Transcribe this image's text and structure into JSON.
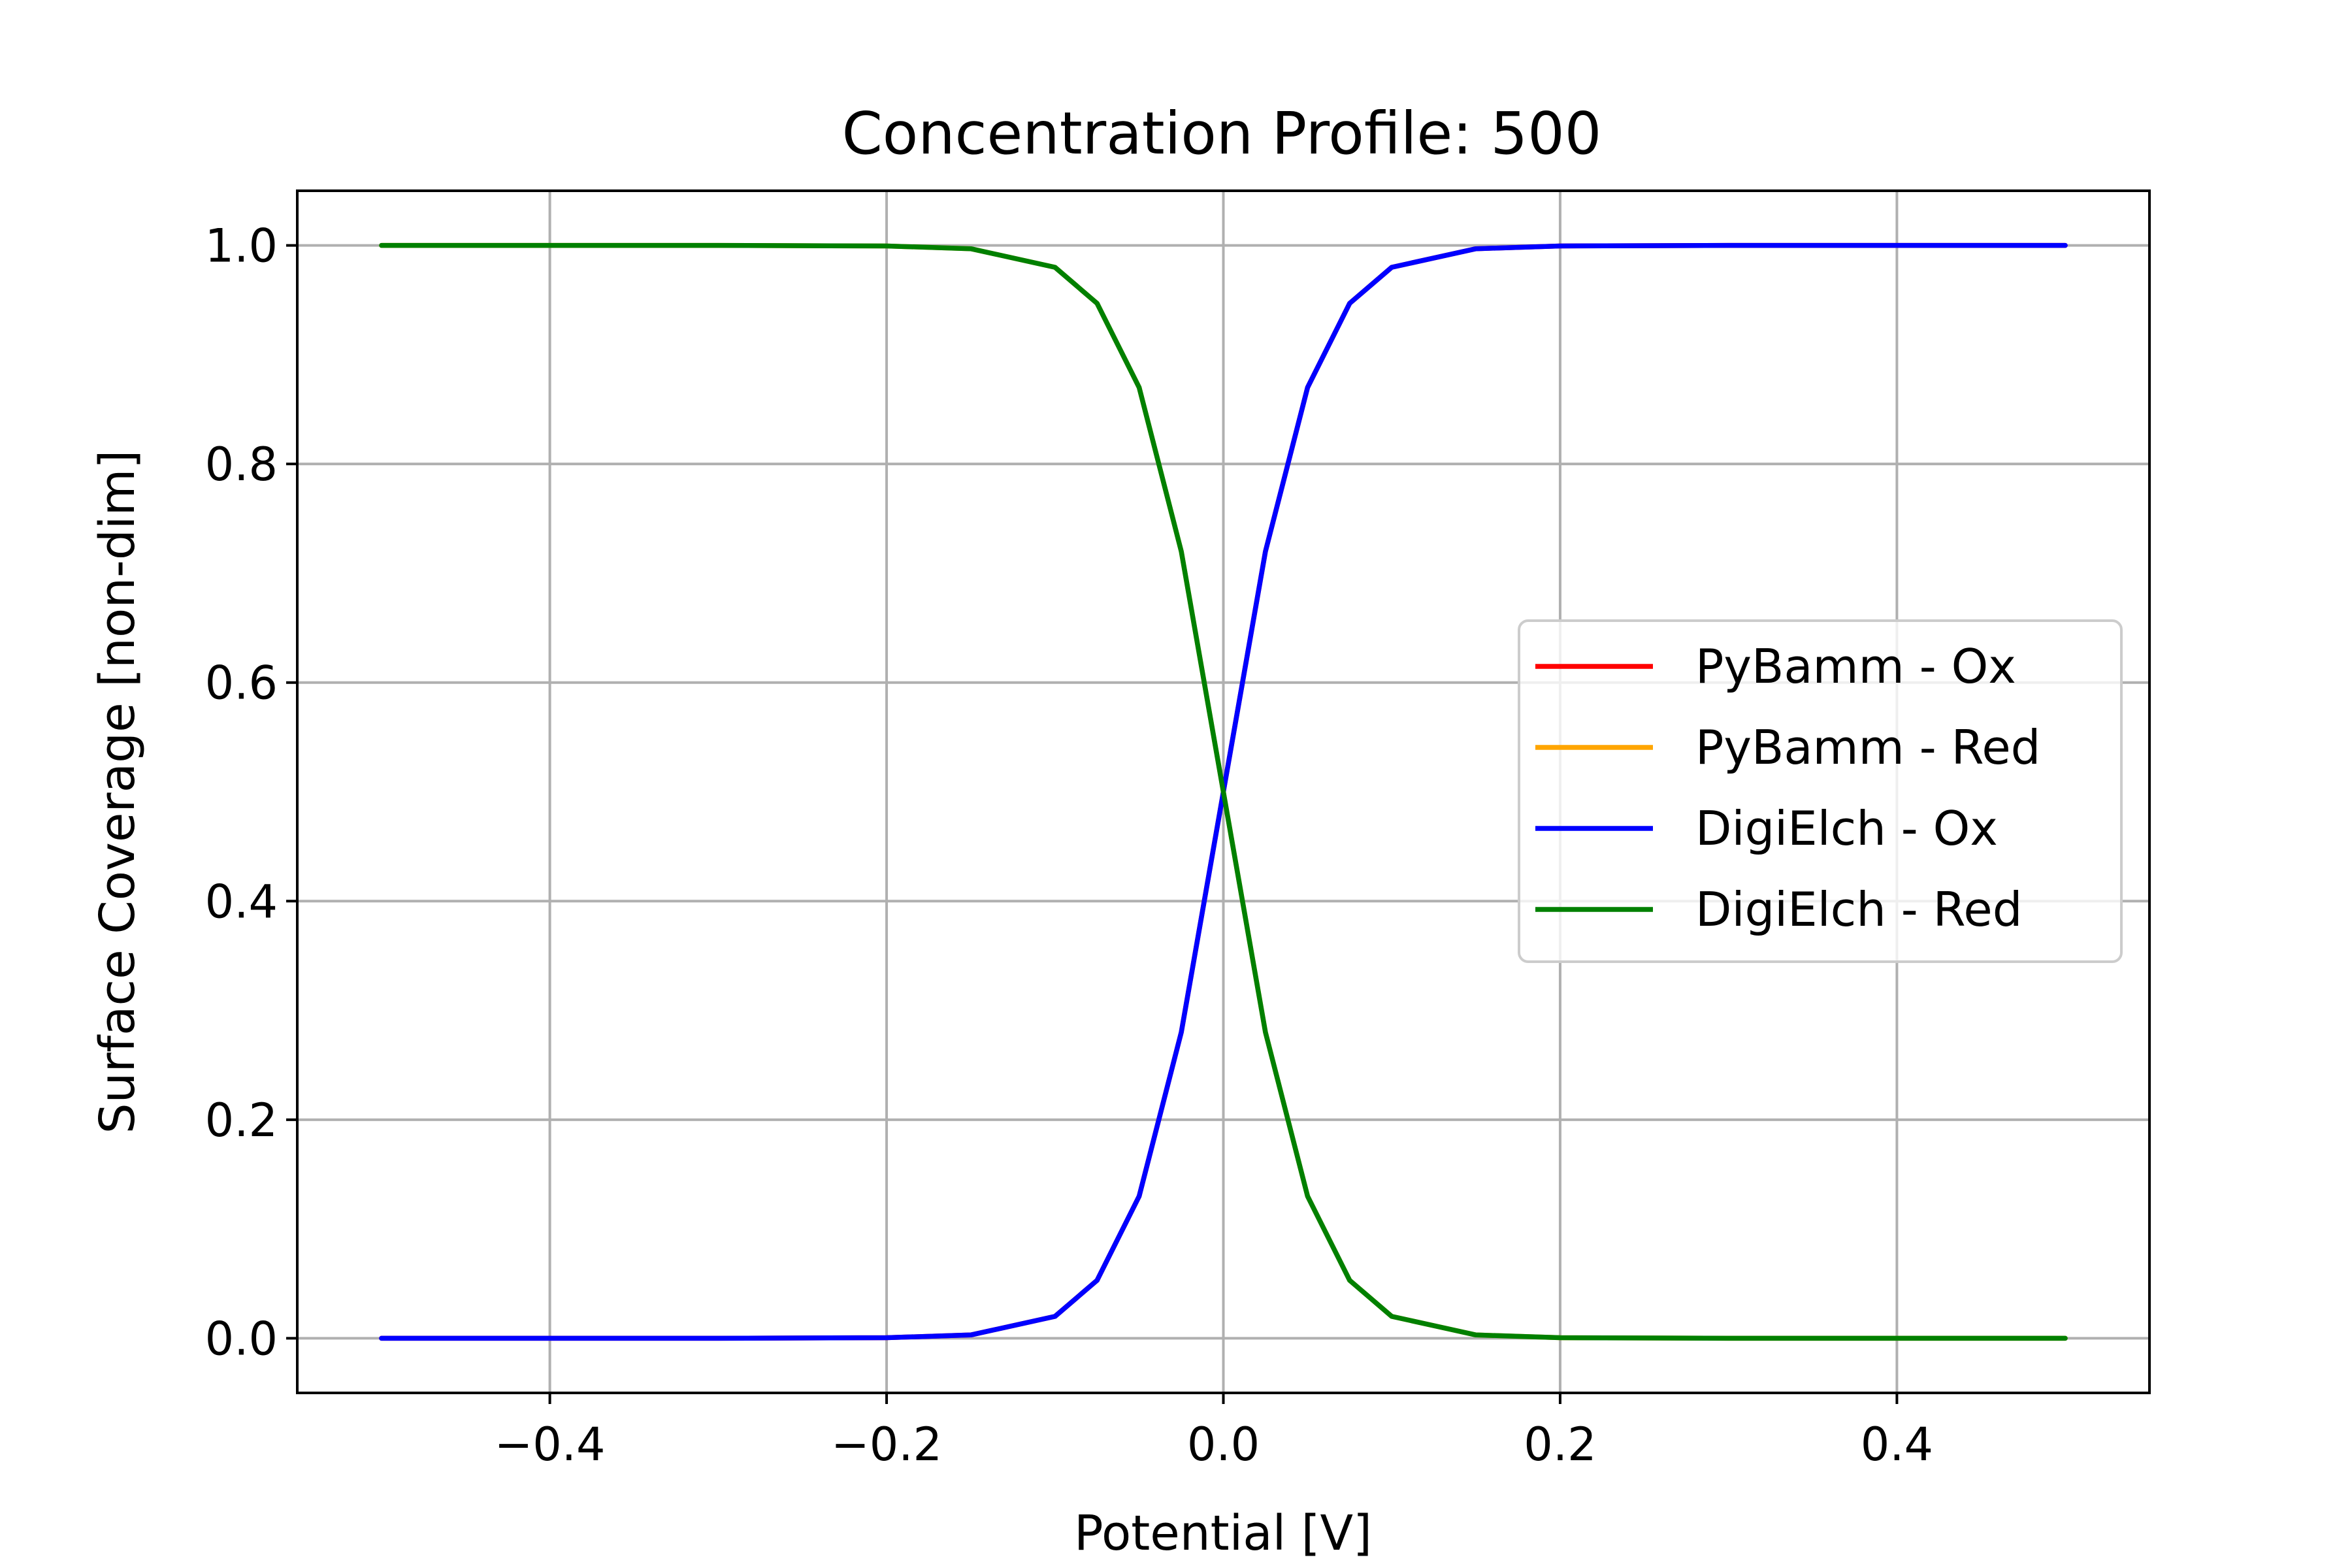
{
  "chart_data": {
    "type": "line",
    "title": "Concentration Profile: 500",
    "xlabel": "Potential [V]",
    "ylabel": "Surface Coverage [non-dim]",
    "xlim": [
      -0.55,
      0.55
    ],
    "ylim": [
      -0.05,
      1.05
    ],
    "xticks": [
      -0.4,
      -0.2,
      0.0,
      0.2,
      0.4
    ],
    "xtick_labels": [
      "−0.4",
      "−0.2",
      "0.0",
      "0.2",
      "0.4"
    ],
    "yticks": [
      0.0,
      0.2,
      0.4,
      0.6,
      0.8,
      1.0
    ],
    "ytick_labels": [
      "0.0",
      "0.2",
      "0.4",
      "0.6",
      "0.8",
      "1.0"
    ],
    "grid": true,
    "legend_position": "center-right",
    "x": [
      -0.5,
      -0.4,
      -0.3,
      -0.2,
      -0.15,
      -0.1,
      -0.075,
      -0.05,
      -0.025,
      0.0,
      0.025,
      0.05,
      0.075,
      0.1,
      0.15,
      0.2,
      0.3,
      0.4,
      0.5
    ],
    "series": [
      {
        "name": "PyBamm - Ox",
        "color": "#ff0000",
        "values": [
          0.0,
          0.0,
          0.0,
          0.0005,
          0.003,
          0.02,
          0.053,
          0.13,
          0.28,
          0.5,
          0.72,
          0.87,
          0.947,
          0.98,
          0.997,
          0.9995,
          1.0,
          1.0,
          1.0
        ]
      },
      {
        "name": "PyBamm - Red",
        "color": "#ffa500",
        "values": [
          1.0,
          1.0,
          1.0,
          0.9995,
          0.997,
          0.98,
          0.947,
          0.87,
          0.72,
          0.5,
          0.28,
          0.13,
          0.053,
          0.02,
          0.003,
          0.0005,
          0.0,
          0.0,
          0.0
        ]
      },
      {
        "name": "DigiElch - Ox",
        "color": "#0000ff",
        "values": [
          0.0,
          0.0,
          0.0,
          0.0005,
          0.003,
          0.02,
          0.053,
          0.13,
          0.28,
          0.5,
          0.72,
          0.87,
          0.947,
          0.98,
          0.997,
          0.9995,
          1.0,
          1.0,
          1.0
        ]
      },
      {
        "name": "DigiElch - Red",
        "color": "#008000",
        "values": [
          1.0,
          1.0,
          1.0,
          0.9995,
          0.997,
          0.98,
          0.947,
          0.87,
          0.72,
          0.5,
          0.28,
          0.13,
          0.053,
          0.02,
          0.003,
          0.0005,
          0.0,
          0.0,
          0.0
        ]
      }
    ]
  }
}
